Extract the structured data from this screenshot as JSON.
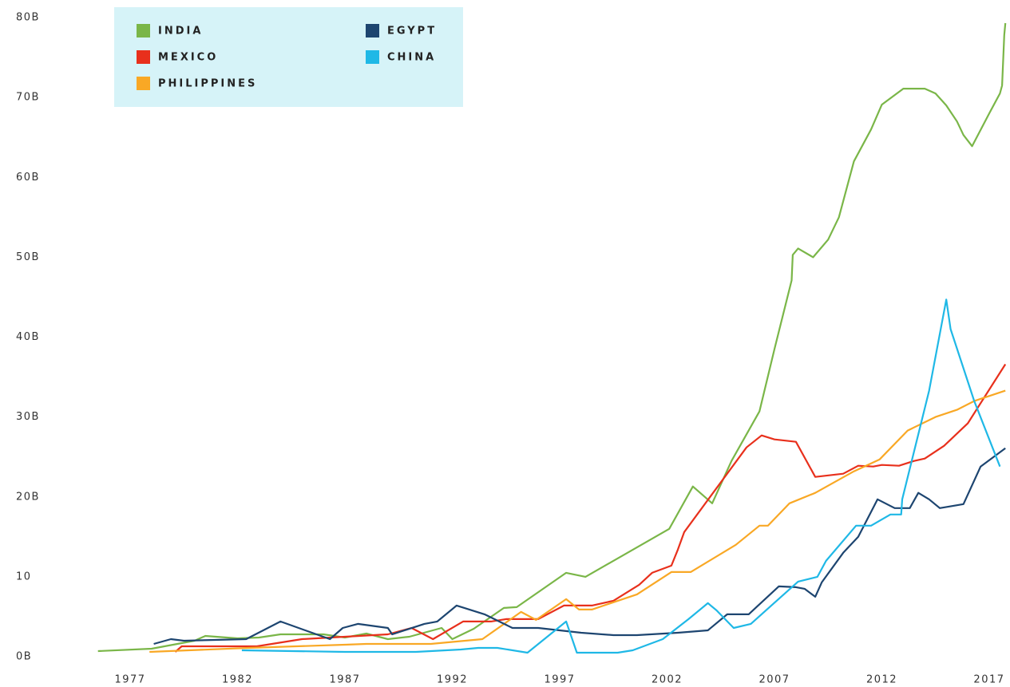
{
  "chart_data": {
    "type": "line",
    "xlim": [
      1975.4,
      2017.8
    ],
    "xticks": [
      1977,
      1982,
      1987,
      1992,
      1997,
      2002,
      2007,
      2012,
      2017
    ],
    "ylim": [
      0,
      80
    ],
    "yticks": [
      {
        "value": 0,
        "label": "0B"
      },
      10,
      {
        "value": 20,
        "label": "20B"
      },
      {
        "value": 30,
        "label": "30B"
      },
      {
        "value": 40,
        "label": "40B"
      },
      {
        "value": 50,
        "label": "50B"
      },
      {
        "value": 60,
        "label": "60B"
      },
      {
        "value": 70,
        "label": "70B"
      },
      {
        "value": 80,
        "label": "80B"
      }
    ],
    "grid": false,
    "legend": "top-left",
    "series": [
      {
        "name": "INDIA",
        "color": "#7ab648",
        "x": [
          1975.5,
          1978,
          1980,
          1980.5,
          1982,
          1983,
          1984,
          1986,
          1987,
          1988,
          1989,
          1990,
          1991.5,
          1992,
          1993,
          1994.4,
          1995,
          1997.3,
          1998.2,
          2002.1,
          2003.2,
          2004.1,
          2005,
          2006.3,
          2007,
          2007.8,
          2007.85,
          2008.1,
          2008.8,
          2009.5,
          2010,
          2010.7,
          2011.5,
          2012,
          2013,
          2014,
          2014.5,
          2015,
          2015.5,
          2015.8,
          2016.2,
          2017,
          2017.5,
          2017.6,
          2017.7,
          2017.75
        ],
        "values": [
          0.7,
          1.0,
          2.0,
          2.6,
          2.3,
          2.4,
          2.8,
          2.8,
          2.4,
          2.9,
          2.2,
          2.5,
          3.6,
          2.2,
          3.5,
          6.1,
          6.2,
          10.5,
          10.0,
          16.0,
          21.3,
          19.2,
          24.5,
          30.7,
          38.5,
          47.1,
          50.3,
          51.1,
          50.0,
          52.2,
          55.0,
          62.0,
          66.0,
          69.1,
          71.1,
          71.1,
          70.5,
          69.0,
          67.0,
          65.3,
          63.9,
          68.0,
          70.5,
          71.5,
          77.8,
          79.3
        ]
      },
      {
        "name": "MEXICO",
        "color": "#e8301c",
        "x": [
          1979.1,
          1979.4,
          1982.9,
          1985,
          1987,
          1989,
          1990.1,
          1991.1,
          1992.5,
          1993.8,
          1994.5,
          1996,
          1997.2,
          1998.5,
          1999.5,
          2000.7,
          2001.3,
          2002.2,
          2002.5,
          2002.8,
          2005.7,
          2006.4,
          2007,
          2008,
          2008.9,
          2010.2,
          2010.9,
          2011.6,
          2012,
          2012.8,
          2013.5,
          2014,
          2014.9,
          2016,
          2017.75
        ],
        "values": [
          0.6,
          1.3,
          1.3,
          2.2,
          2.5,
          2.8,
          3.6,
          2.2,
          4.4,
          4.4,
          4.7,
          4.7,
          6.4,
          6.4,
          7.0,
          9.0,
          10.5,
          11.4,
          13.4,
          15.6,
          26.2,
          27.7,
          27.2,
          26.9,
          22.5,
          22.9,
          23.9,
          23.8,
          24.0,
          23.9,
          24.5,
          24.8,
          26.4,
          29.2,
          36.6
        ]
      },
      {
        "name": "PHILIPPINES",
        "color": "#f9a825",
        "x": [
          1977.9,
          1982.5,
          1987,
          1988,
          1991,
          1993.4,
          1995.2,
          1995.9,
          1997.3,
          1997.9,
          1998.5,
          2000.6,
          2002.2,
          2003.1,
          2005.2,
          2006.3,
          2006.7,
          2007.7,
          2008.9,
          2010.7,
          2011.9,
          2013.2,
          2014.5,
          2015.5,
          2016.3,
          2017.75
        ],
        "values": [
          0.6,
          1.1,
          1.5,
          1.6,
          1.6,
          2.2,
          5.6,
          4.6,
          7.2,
          5.9,
          5.9,
          7.8,
          10.6,
          10.6,
          14.0,
          16.4,
          16.4,
          19.2,
          20.5,
          23.2,
          24.7,
          28.3,
          30.0,
          30.9,
          32.0,
          33.3
        ]
      },
      {
        "name": "EGYPT",
        "color": "#1d4570",
        "x": [
          1978.1,
          1978.9,
          1979.5,
          1982.4,
          1984,
          1986.3,
          1986.9,
          1987.6,
          1989,
          1989.2,
          1990.7,
          1991.3,
          1992.2,
          1993.5,
          1994.8,
          1996,
          1998,
          1999.5,
          2000.6,
          2002.5,
          2003.9,
          2004.8,
          2005.8,
          2007.2,
          2008,
          2008.4,
          2008.9,
          2009.2,
          2010.2,
          2010.9,
          2011.8,
          2012.6,
          2013.3,
          2013.7,
          2014.2,
          2014.7,
          2015.8,
          2016.6,
          2017.75
        ],
        "values": [
          1.6,
          2.2,
          2.0,
          2.2,
          4.4,
          2.2,
          3.6,
          4.1,
          3.6,
          2.8,
          4.1,
          4.4,
          6.4,
          5.3,
          3.6,
          3.6,
          3.0,
          2.7,
          2.7,
          3.0,
          3.3,
          5.3,
          5.3,
          8.8,
          8.7,
          8.5,
          7.5,
          9.3,
          13.0,
          15.0,
          19.7,
          18.6,
          18.6,
          20.5,
          19.7,
          18.6,
          19.1,
          23.8,
          26.1
        ]
      },
      {
        "name": "CHINA",
        "color": "#1fb8e6",
        "x": [
          1982.2,
          1987,
          1990.3,
          1992.4,
          1993.2,
          1994.1,
          1995.5,
          1997.3,
          1997.8,
          1999.7,
          2000.4,
          2001.8,
          2003,
          2003.9,
          2004.3,
          2005.1,
          2005.9,
          2008.1,
          2009,
          2009.4,
          2010.8,
          2011.5,
          2012.4,
          2012.9,
          2012.95,
          2014.2,
          2015,
          2015.2,
          2016.3,
          2017.5
        ],
        "values": [
          0.8,
          0.6,
          0.6,
          0.9,
          1.1,
          1.1,
          0.5,
          4.4,
          0.5,
          0.5,
          0.8,
          2.2,
          4.7,
          6.7,
          5.8,
          3.6,
          4.1,
          9.4,
          10.0,
          12.0,
          16.4,
          16.4,
          17.8,
          17.8,
          19.7,
          33.3,
          44.7,
          41.0,
          32.0,
          23.8
        ]
      }
    ]
  }
}
